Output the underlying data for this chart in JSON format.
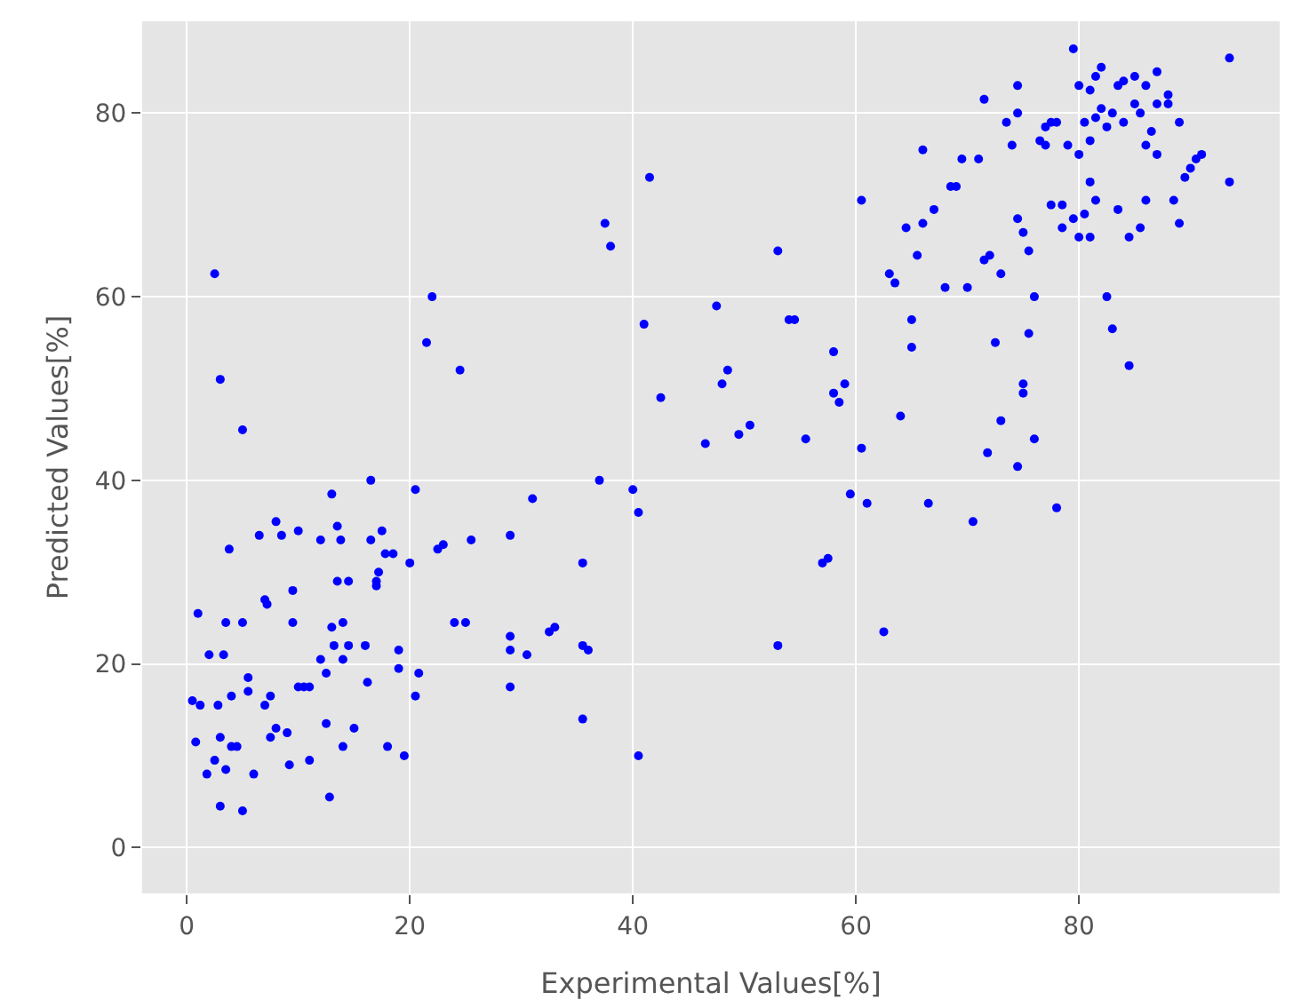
{
  "chart_data": {
    "type": "scatter",
    "xlabel": "Experimental Values[%]",
    "ylabel": "Predicted Values[%]",
    "marker": "circle",
    "grid": true,
    "xlim": [
      -4,
      98
    ],
    "ylim": [
      -5,
      90
    ],
    "xticks": [
      0,
      20,
      40,
      60,
      80
    ],
    "yticks": [
      0,
      20,
      40,
      60,
      80
    ],
    "series": [
      {
        "color": "#0000ff",
        "x": [
          0.5,
          1,
          1.2,
          0.8,
          2,
          2.5,
          3,
          1.8,
          2.5,
          3,
          3.3,
          3.5,
          3.8,
          2.8,
          3,
          3.5,
          4,
          4.5,
          4,
          5,
          5,
          5,
          5.5,
          5.5,
          6,
          6.5,
          7,
          7.2,
          7,
          7.5,
          7.5,
          8,
          8.5,
          8,
          9,
          9.2,
          9.5,
          9.5,
          10,
          10,
          10.5,
          11,
          11,
          12,
          12,
          12.5,
          12.5,
          13,
          13,
          12.8,
          13.2,
          13.5,
          13.5,
          13.8,
          14,
          14,
          14,
          14.5,
          14.5,
          15,
          16,
          16.2,
          16.5,
          16.5,
          17,
          17,
          17.5,
          17.2,
          17.8,
          18,
          18.5,
          19,
          19,
          19.5,
          20,
          20.5,
          20.5,
          20.8,
          21.5,
          22,
          22.5,
          23,
          24,
          24.5,
          25,
          25.5,
          29,
          29,
          29,
          29,
          30.5,
          31,
          32.5,
          33,
          35.5,
          35.5,
          35.5,
          36,
          37,
          37.5,
          38,
          40,
          40.5,
          40.5,
          41,
          41.5,
          42.5,
          46.5,
          47.5,
          48,
          48.5,
          49.5,
          50.5,
          53,
          53,
          54,
          54.5,
          55.5,
          57,
          57.5,
          58,
          58,
          58.5,
          59,
          59.5,
          60.5,
          60.5,
          61,
          62.5,
          63,
          63.5,
          64,
          64.5,
          65,
          65,
          65.5,
          66,
          66,
          66.5,
          67,
          68,
          68.5,
          69,
          69.5,
          70,
          70.5,
          71,
          71.5,
          71.5,
          71.8,
          72,
          72.5,
          73,
          73,
          73.5,
          74,
          74.5,
          74.5,
          74.5,
          74.5,
          75,
          75,
          75,
          75.5,
          75.5,
          76,
          76,
          76.5,
          77,
          77,
          77.5,
          77.5,
          78,
          78,
          78.5,
          78.5,
          79,
          79.5,
          79.5,
          80,
          80,
          80,
          80.5,
          80.5,
          81,
          81,
          81,
          81,
          81.5,
          81.5,
          81.5,
          82,
          82,
          82.5,
          82.5,
          83,
          83,
          83.5,
          83.5,
          84,
          84,
          84.5,
          84.5,
          85,
          85,
          85.5,
          85.5,
          86,
          86,
          86,
          86.5,
          87,
          87,
          87,
          88,
          88,
          88.5,
          89,
          89,
          89.5,
          90,
          90.5,
          91,
          93.5,
          93.5
        ],
        "values": [
          16,
          25.5,
          15.5,
          11.5,
          21,
          62.5,
          51,
          8,
          9.5,
          12,
          21,
          24.5,
          32.5,
          15.5,
          4.5,
          8.5,
          16.5,
          11,
          11,
          4,
          24.5,
          45.5,
          17,
          18.5,
          8,
          34,
          27,
          26.5,
          15.5,
          16.5,
          12,
          35.5,
          34,
          13,
          12.5,
          9,
          24.5,
          28,
          34.5,
          17.5,
          17.5,
          9.5,
          17.5,
          33.5,
          20.5,
          19,
          13.5,
          24,
          38.5,
          5.5,
          22,
          35,
          29,
          33.5,
          11,
          20.5,
          24.5,
          29,
          22,
          13,
          22,
          18,
          40,
          33.5,
          29,
          28.5,
          34.5,
          30,
          32,
          11,
          32,
          19.5,
          21.5,
          10,
          31,
          39,
          16.5,
          19,
          55,
          60,
          32.5,
          33,
          24.5,
          52,
          24.5,
          33.5,
          23,
          21.5,
          17.5,
          34,
          21,
          38,
          23.5,
          24,
          31,
          14,
          22,
          21.5,
          40,
          68,
          65.5,
          39,
          36.5,
          10,
          57,
          73,
          49,
          44,
          59,
          50.5,
          52,
          45,
          46,
          65,
          22,
          57.5,
          57.5,
          44.5,
          31,
          31.5,
          49.5,
          54,
          48.5,
          50.5,
          38.5,
          43.5,
          70.5,
          37.5,
          23.5,
          62.5,
          61.5,
          47,
          67.5,
          57.5,
          54.5,
          64.5,
          76,
          68,
          37.5,
          69.5,
          61,
          72,
          72,
          75,
          61,
          35.5,
          75,
          81.5,
          64,
          43,
          64.5,
          55,
          46.5,
          62.5,
          79,
          76.5,
          68.5,
          80,
          83,
          41.5,
          67,
          50.5,
          49.5,
          56,
          65,
          60,
          44.5,
          77,
          78.5,
          76.5,
          79,
          70,
          37,
          79,
          67.5,
          70,
          76.5,
          68.5,
          87,
          83,
          66.5,
          75.5,
          69,
          79,
          82.5,
          72.5,
          66.5,
          77,
          79.5,
          70.5,
          84,
          80.5,
          85,
          60,
          78.5,
          56.5,
          80,
          83,
          69.5,
          83.5,
          79,
          66.5,
          52.5,
          81,
          84,
          80,
          67.5,
          83,
          76.5,
          70.5,
          78,
          81,
          84.5,
          75.5,
          82,
          81,
          70.5,
          79,
          68,
          73,
          74,
          75,
          75.5,
          86,
          72.5
        ]
      }
    ]
  }
}
